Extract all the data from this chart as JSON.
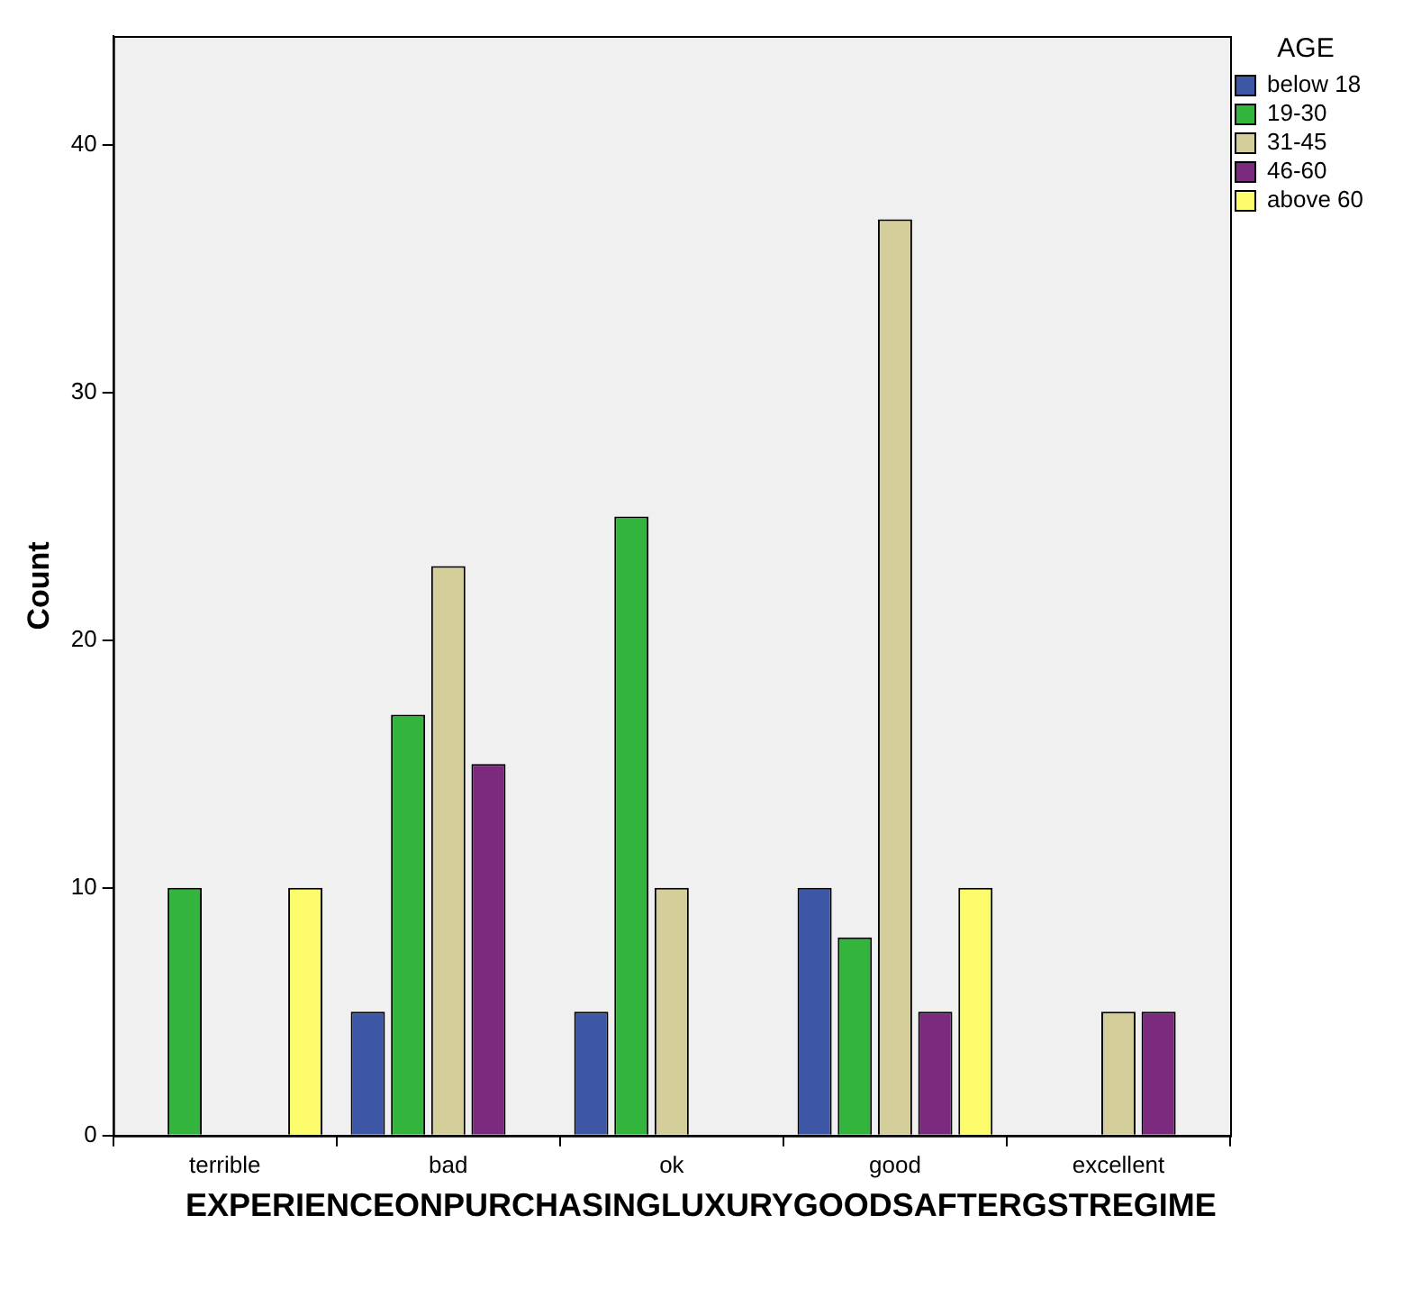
{
  "chart_data": {
    "type": "bar",
    "xlabel": "EXPERIENCEONPURCHASINGLUXURYGOODSAFTERGSTREGIME",
    "ylabel": "Count",
    "legend_title": "AGE",
    "legend": "top right",
    "grid": false,
    "categories": [
      "terrible",
      "bad",
      "ok",
      "good",
      "excellent"
    ],
    "ylim": [
      0,
      44.4
    ],
    "yticks": [
      0,
      10,
      20,
      30,
      40
    ],
    "series": [
      {
        "name": "below 18",
        "color": "#3d56a6",
        "values": [
          null,
          5,
          5,
          10,
          null
        ]
      },
      {
        "name": "19-30",
        "color": "#33b43d",
        "values": [
          10,
          17,
          25,
          8,
          null
        ]
      },
      {
        "name": "31-45",
        "color": "#d4cf9a",
        "values": [
          null,
          23,
          10,
          37,
          5
        ]
      },
      {
        "name": "46-60",
        "color": "#7b2a7e",
        "values": [
          null,
          15,
          null,
          5,
          5
        ]
      },
      {
        "name": "above 60",
        "color": "#fbfb6c",
        "values": [
          10,
          null,
          null,
          10,
          null
        ]
      }
    ]
  }
}
